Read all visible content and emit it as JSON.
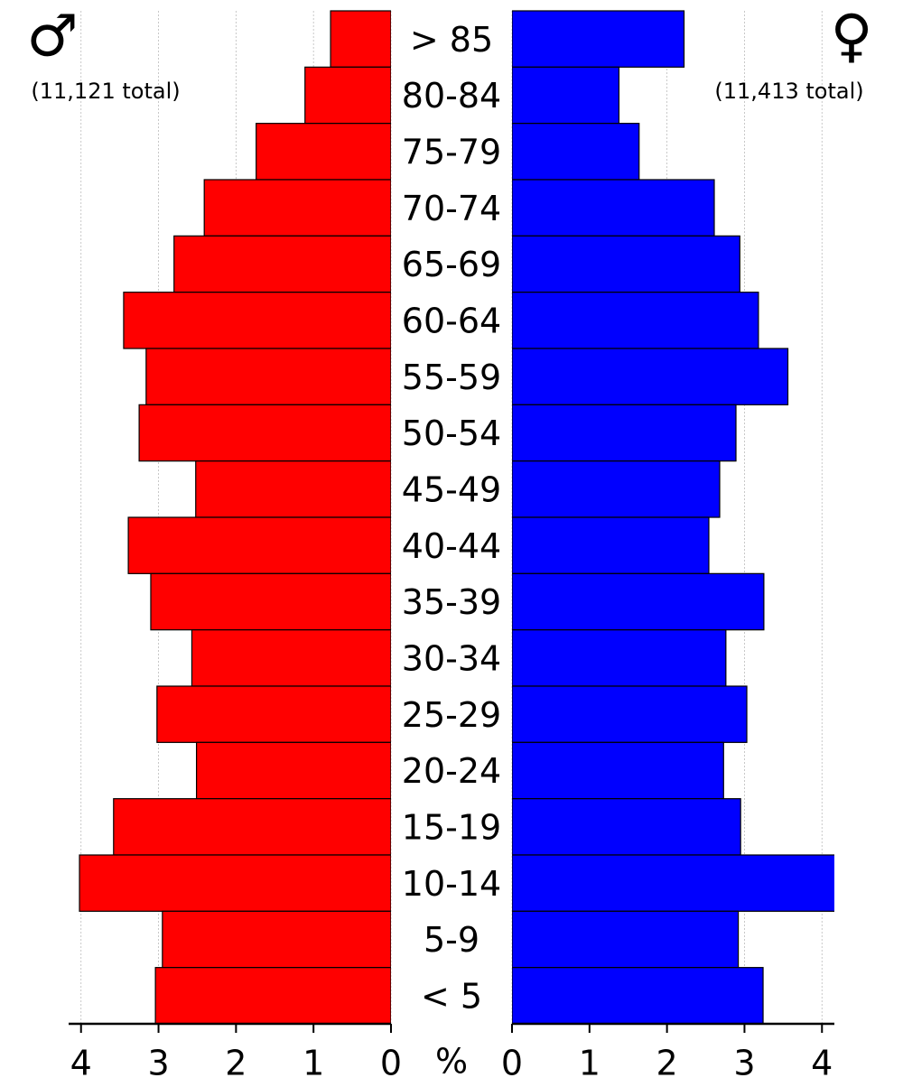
{
  "chart_data": {
    "type": "pyramid",
    "categories": [
      "> 85",
      "80-84",
      "75-79",
      "70-74",
      "65-69",
      "60-64",
      "55-59",
      "50-54",
      "45-49",
      "40-44",
      "35-39",
      "30-34",
      "25-29",
      "20-24",
      "15-19",
      "10-14",
      "5-9",
      "< 5"
    ],
    "series": [
      {
        "name": "♂",
        "color": "#ff0000",
        "annotation": "(11,121 total)",
        "values": [
          0.78,
          1.11,
          1.74,
          2.41,
          2.8,
          3.45,
          3.16,
          3.25,
          2.52,
          3.39,
          3.1,
          2.57,
          3.02,
          2.51,
          3.58,
          4.02,
          2.95,
          3.04
        ]
      },
      {
        "name": "♀",
        "color": "#0000ff",
        "annotation": "(11,413 total)",
        "values": [
          2.22,
          1.38,
          1.64,
          2.61,
          2.94,
          3.18,
          3.56,
          2.89,
          2.68,
          2.54,
          3.25,
          2.76,
          3.03,
          2.73,
          2.95,
          4.2,
          2.92,
          3.24
        ]
      }
    ],
    "axis_label": "%",
    "xlim": [
      0,
      4.16
    ],
    "xticks": [
      0,
      1,
      2,
      3,
      4
    ],
    "grid": true
  }
}
